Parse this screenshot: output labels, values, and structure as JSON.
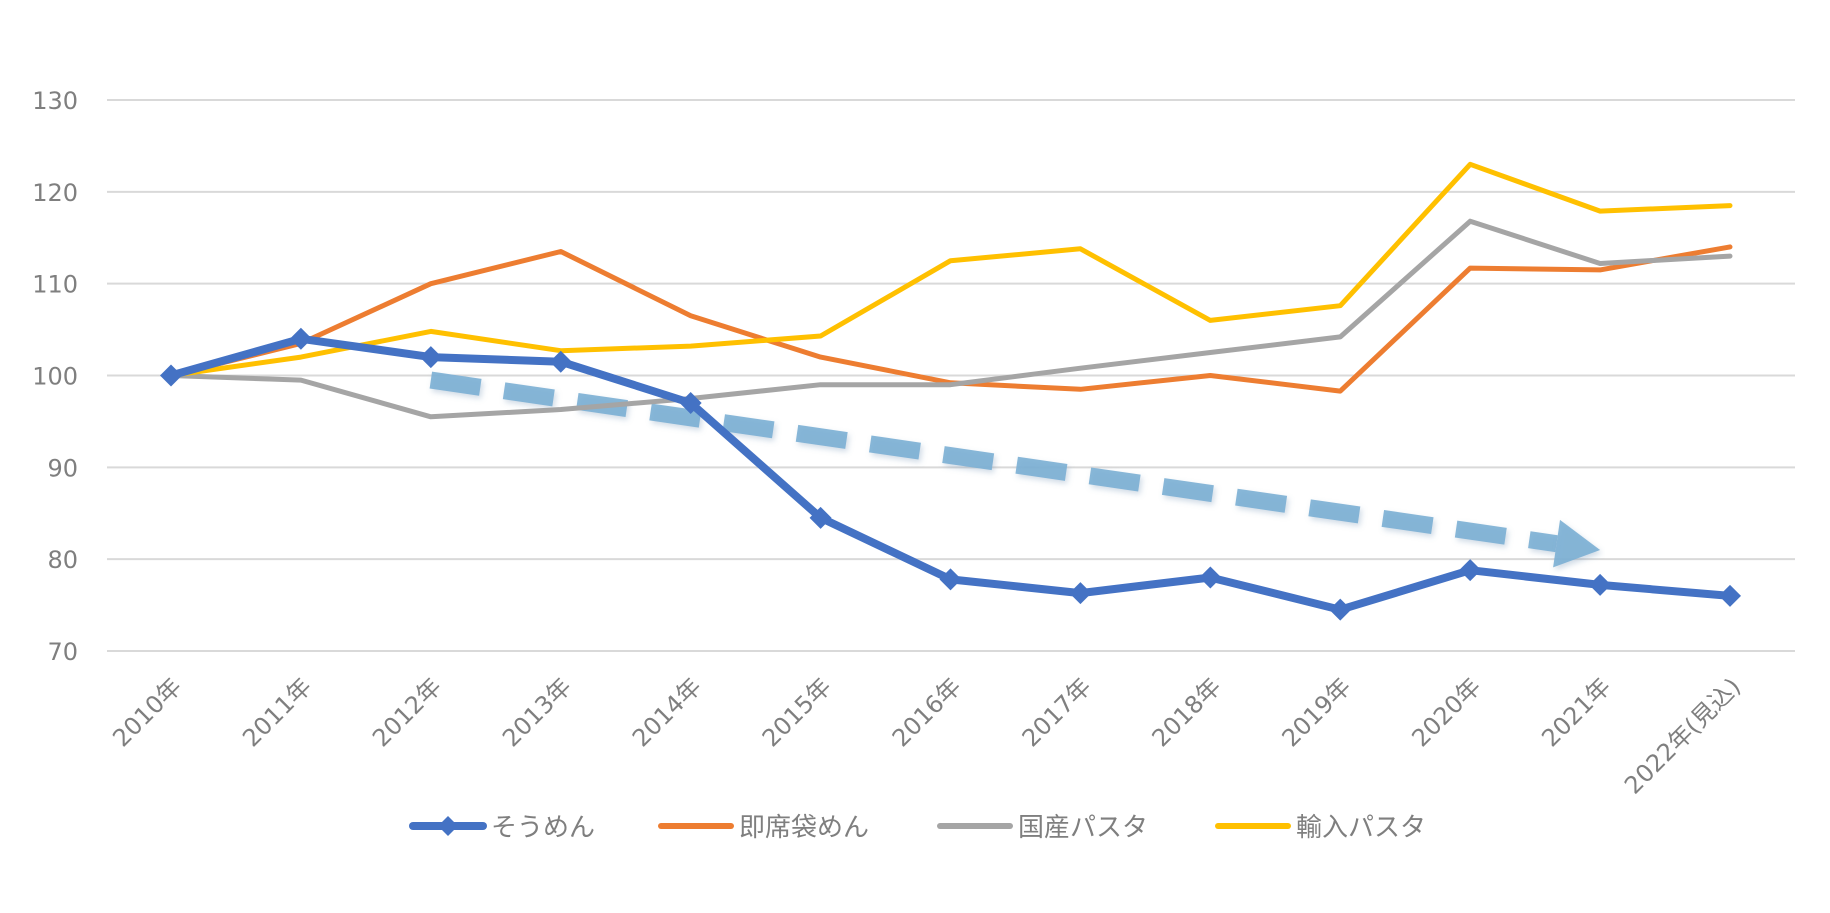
{
  "chart_data": {
    "type": "line",
    "title": "",
    "xlabel": "",
    "ylabel": "",
    "ylim": [
      70,
      130
    ],
    "yticks": [
      70,
      80,
      90,
      100,
      110,
      120,
      130
    ],
    "ytick_labels": [
      "70",
      "80",
      "90",
      "100",
      "110",
      "120",
      "130"
    ],
    "grid": true,
    "legend_position": "bottom",
    "categories": [
      "2010年",
      "2011年",
      "2012年",
      "2013年",
      "2014年",
      "2015年",
      "2016年",
      "2017年",
      "2018年",
      "2019年",
      "2020年",
      "2021年",
      "2022年(見込)"
    ],
    "series": [
      {
        "name": "そうめん",
        "color": "#4472c4",
        "marker": "diamond",
        "values": [
          100,
          104,
          102,
          101.5,
          97,
          84.5,
          77.8,
          76.3,
          78,
          74.5,
          78.8,
          77.2,
          76
        ]
      },
      {
        "name": "即席袋めん",
        "color": "#ed7d31",
        "marker": "none",
        "values": [
          100,
          103.5,
          110,
          113.5,
          106.5,
          102,
          99.2,
          98.5,
          100,
          98.3,
          111.7,
          111.5,
          114
        ]
      },
      {
        "name": "国産パスタ",
        "color": "#a5a5a5",
        "marker": "none",
        "values": [
          100,
          99.5,
          95.5,
          96.3,
          97.5,
          99,
          99,
          100.8,
          102.5,
          104.2,
          116.8,
          112.2,
          113
        ]
      },
      {
        "name": "輸入パスタ",
        "color": "#ffc000",
        "marker": "none",
        "values": [
          100,
          102,
          104.8,
          102.7,
          103.2,
          104.3,
          112.5,
          113.8,
          106,
          107.6,
          123,
          117.9,
          118.5
        ]
      }
    ],
    "annotations": [
      {
        "type": "dashed-arrow",
        "color": "#7bafd4",
        "from": {
          "x": "2012年",
          "y": 99.5
        },
        "to": {
          "x": "2021年",
          "y": 81
        }
      }
    ]
  }
}
